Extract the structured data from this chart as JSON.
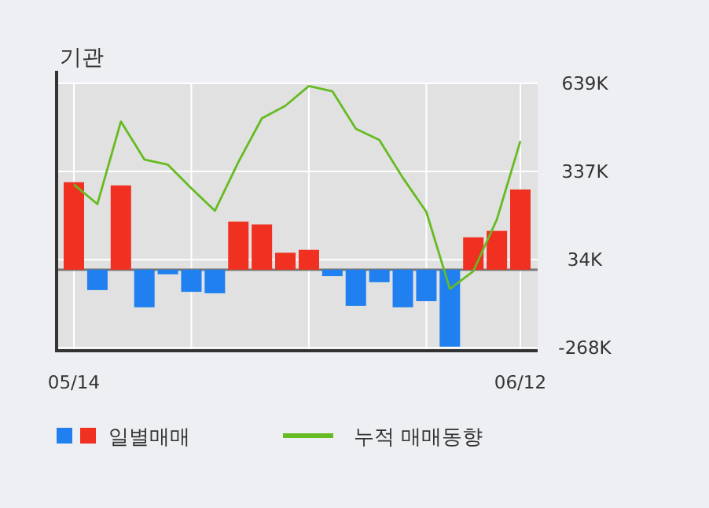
{
  "chart_data": {
    "type": "bar",
    "title": "기관",
    "categories": [
      "05/14",
      null,
      null,
      null,
      null,
      null,
      null,
      null,
      null,
      null,
      null,
      null,
      null,
      null,
      null,
      null,
      null,
      null,
      null,
      "06/12"
    ],
    "series": [
      {
        "name": "일별매매",
        "colors": [
          "#f03020",
          "#2080f0",
          "#f03020",
          "#2080f0",
          "#2080f0",
          "#2080f0",
          "#2080f0",
          "#f03020",
          "#f03020",
          "#f03020",
          "#f03020",
          "#2080f0",
          "#2080f0",
          "#2080f0",
          "#2080f0",
          "#2080f0",
          "#2080f0",
          "#f03020",
          "#f03020",
          "#f03020"
        ],
        "values": [
          300,
          -70,
          289,
          -129,
          -16,
          -76,
          -81,
          165,
          155,
          58,
          68,
          -22,
          -124,
          -43,
          -129,
          -108,
          -264,
          111,
          133,
          275
        ]
      },
      {
        "name": "누적 매매동향",
        "type": "line",
        "color": "#66bb22",
        "values": [
          292,
          225,
          508,
          378,
          360,
          279,
          202,
          369,
          519,
          562,
          630,
          612,
          483,
          445,
          315,
          198,
          -66,
          -5,
          172,
          441
        ]
      }
    ],
    "ylim": [
      -278,
      639
    ],
    "yticks": [
      {
        "value": 639,
        "label": "639K"
      },
      {
        "value": 337,
        "label": "337K"
      },
      {
        "value": 34,
        "label": "34K"
      },
      {
        "value": -268,
        "label": "-268K"
      }
    ],
    "grid": true,
    "legend": "bottom"
  }
}
